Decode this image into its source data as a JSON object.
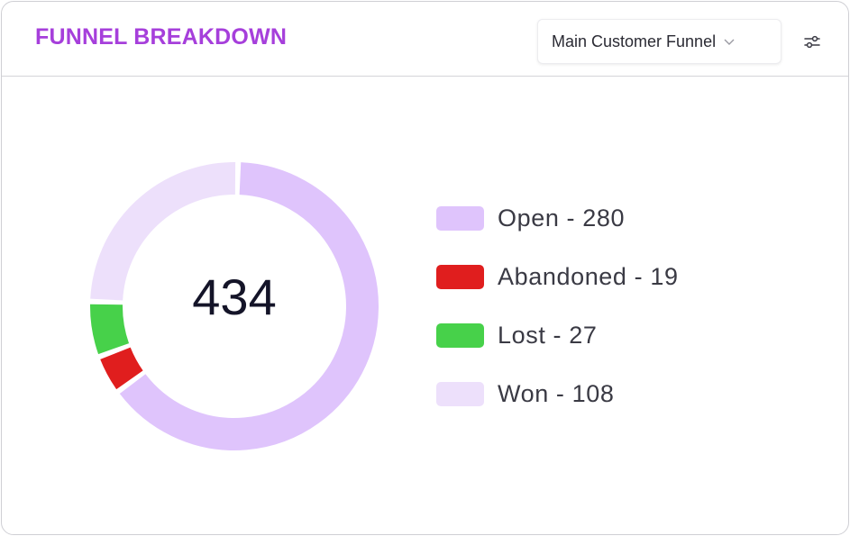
{
  "header": {
    "title": "FUNNEL BREAKDOWN",
    "funnel_select": {
      "value": "Main Customer Funnel"
    },
    "settings_icon": "sliders-icon"
  },
  "colors": {
    "title": "#a63fdb",
    "open": "#dfc4fc",
    "abandoned": "#e01e1e",
    "lost": "#47d14a",
    "won": "#ede0fb",
    "top_segment": "#a08cf5"
  },
  "chart_data": {
    "type": "pie",
    "style": "donut",
    "total_label": "434",
    "slices": [
      {
        "name": "Open",
        "value": 280,
        "label": "Open - 280",
        "color": "#dfc4fc"
      },
      {
        "name": "Abandoned",
        "value": 19,
        "label": "Abandoned - 19",
        "color": "#e01e1e"
      },
      {
        "name": "Lost",
        "value": 27,
        "label": "Lost - 27",
        "color": "#47d14a"
      },
      {
        "name": "Won",
        "value": 108,
        "label": "Won - 108",
        "color": "#ede0fb"
      }
    ],
    "legend_position": "right"
  }
}
